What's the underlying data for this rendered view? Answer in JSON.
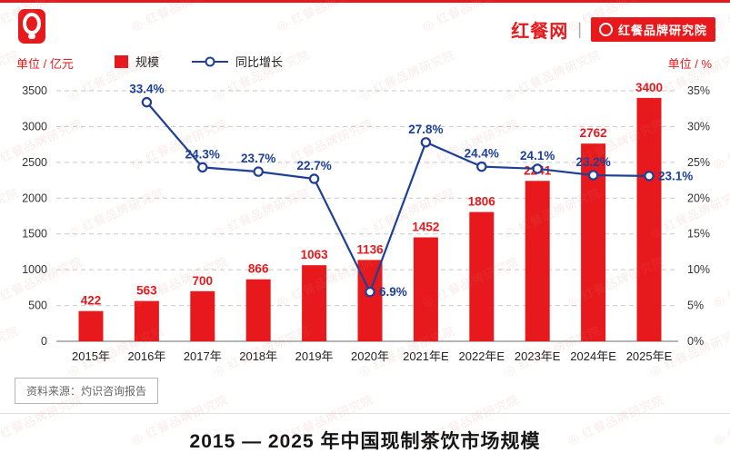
{
  "header": {
    "brand_name": "红餐网",
    "divider": "|",
    "badge_text": "红餐品牌研究院"
  },
  "legend": {
    "left_unit": "单位 / 亿元",
    "right_unit": "单位 / %",
    "series1": "规模",
    "series2": "同比增长"
  },
  "chart_data": {
    "type": "bar+line",
    "categories": [
      "2015年",
      "2016年",
      "2017年",
      "2018年",
      "2019年",
      "2020年",
      "2021年E",
      "2022年E",
      "2023年E",
      "2024年E",
      "2025年E"
    ],
    "series": [
      {
        "name": "规模",
        "type": "bar",
        "values": [
          422,
          563,
          700,
          866,
          1063,
          1136,
          1452,
          1806,
          2241,
          2762,
          3400
        ],
        "color": "#e8191c"
      },
      {
        "name": "同比增长",
        "type": "line",
        "values": [
          null,
          33.4,
          24.3,
          23.7,
          22.7,
          6.9,
          27.8,
          24.4,
          24.1,
          23.2,
          23.1
        ],
        "color": "#1e3f97"
      }
    ],
    "bar_labels": [
      "422",
      "563",
      "700",
      "866",
      "1063",
      "1136",
      "1452",
      "1806",
      "2241",
      "2762",
      "3400"
    ],
    "line_labels": [
      "33.4%",
      "24.3%",
      "23.7%",
      "22.7%",
      "6.9%",
      "27.8%",
      "24.4%",
      "24.1%",
      "23.2%",
      "23.1%"
    ],
    "left_axis": {
      "min": 0,
      "max": 3500,
      "step": 500,
      "labels": [
        "0",
        "500",
        "1000",
        "1500",
        "2000",
        "2500",
        "3000",
        "3500"
      ]
    },
    "right_axis": {
      "min": 0,
      "max": 35,
      "step": 5,
      "labels": [
        "0%",
        "5%",
        "10%",
        "15%",
        "20%",
        "25%",
        "30%",
        "35%"
      ]
    },
    "grid": "horizontal-dashed",
    "legend_position": "top"
  },
  "source": {
    "text": "资料来源：灼识咨询报告"
  },
  "title": "2015 — 2025 年中国现制茶饮市场规模",
  "watermark": {
    "text": "红餐品牌研究院"
  },
  "colors": {
    "bar": "#e8191c",
    "line": "#1e3f97",
    "grid": "#c9c9c9",
    "axis": "#8a8a8a"
  }
}
